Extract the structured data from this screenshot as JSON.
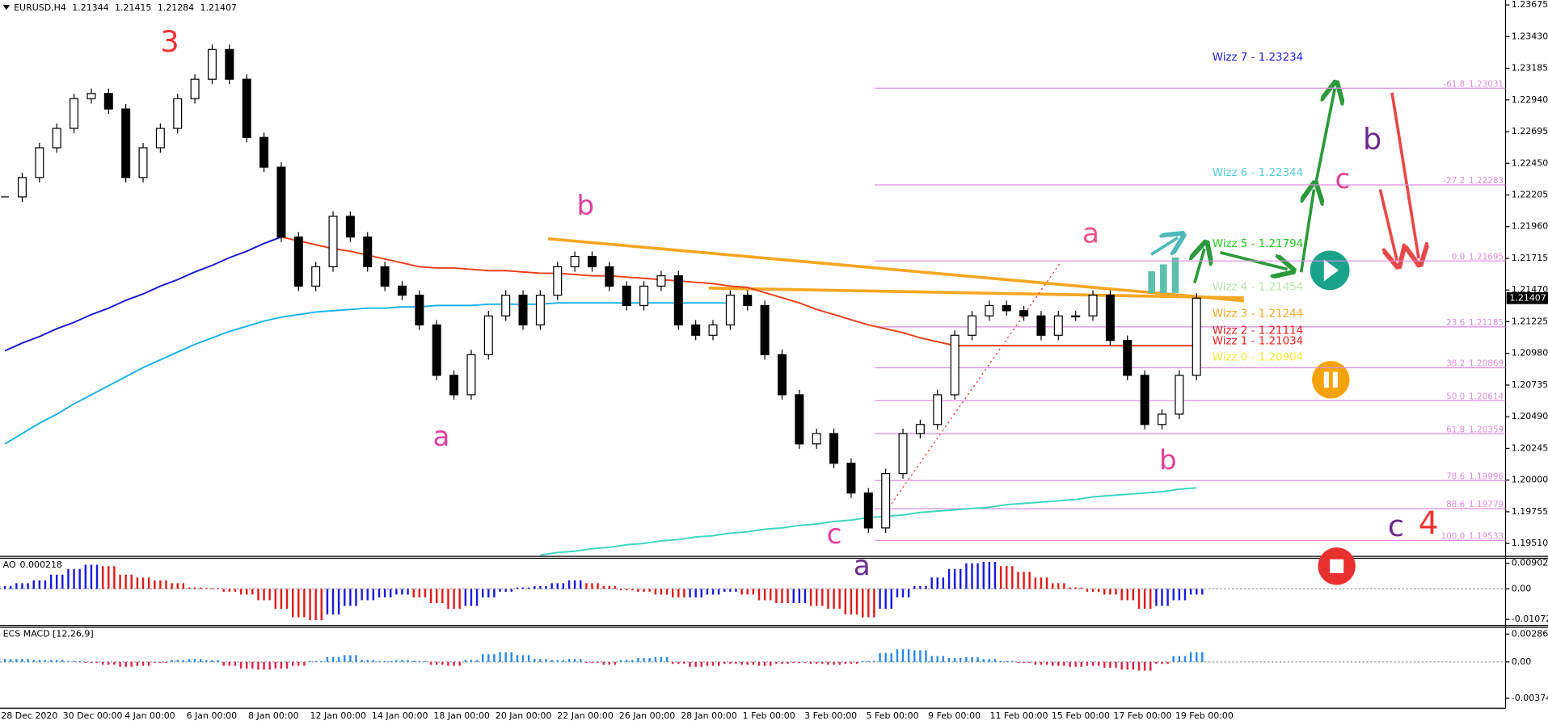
{
  "chart_data": {
    "type": "candlestick",
    "symbol": "EURUSD,H4",
    "ohlc": [
      1.21344,
      1.21415,
      1.21284,
      1.21407
    ],
    "ylim": [
      1.19418,
      1.23713
    ],
    "yticks": [
      1.23675,
      {
        "value": 1.2343,
        "label": "1.23430"
      },
      1.23185,
      {
        "value": 1.2294,
        "label": "1.22940"
      },
      1.22695,
      {
        "value": 1.2245,
        "label": "1.22450"
      },
      1.22205,
      {
        "value": 1.2196,
        "label": "1.21960"
      },
      1.21715,
      {
        "value": 1.2147,
        "label": "1.21470"
      },
      1.21225,
      {
        "value": 1.2098,
        "label": "1.20980"
      },
      1.20735,
      {
        "value": 1.2049,
        "label": "1.20490"
      },
      1.20245,
      {
        "value": 1.2,
        "label": "1.20000"
      },
      1.19755,
      {
        "value": 1.1951,
        "label": "1.19510"
      }
    ],
    "date_labels": [
      "28 Dec 2020",
      "30 Dec 00:00",
      "4 Jan 00:00",
      "6 Jan 00:00",
      "8 Jan 00:00",
      "12 Jan 00:00",
      "14 Jan 00:00",
      "18 Jan 00:00",
      "20 Jan 00:00",
      "22 Jan 00:00",
      "26 Jan 00:00",
      "28 Jan 00:00",
      "1 Feb 00:00",
      "3 Feb 00:00",
      "5 Feb 00:00",
      "9 Feb 00:00",
      "11 Feb 00:00",
      "15 Feb 00:00",
      "17 Feb 00:00",
      "19 Feb 00:00"
    ],
    "closes": [
      1.2219,
      1.2234,
      1.2257,
      1.2272,
      1.2295,
      1.2299,
      1.2287,
      1.2234,
      1.2257,
      1.2272,
      1.2295,
      1.231,
      1.2333,
      1.231,
      1.2265,
      1.2242,
      1.2188,
      1.215,
      1.2165,
      1.2204,
      1.2188,
      1.2165,
      1.215,
      1.2143,
      1.212,
      1.2081,
      1.2066,
      1.2097,
      1.2127,
      1.2143,
      1.212,
      1.2143,
      1.2165,
      1.2173,
      1.2165,
      1.215,
      1.2135,
      1.215,
      1.2158,
      1.212,
      1.2112,
      1.212,
      1.2143,
      1.2135,
      1.2097,
      1.2066,
      1.2028,
      1.2036,
      1.2013,
      1.199,
      1.1963,
      1.2005,
      1.2036,
      1.2043,
      1.2066,
      1.2112,
      1.2127,
      1.2135,
      1.2131,
      1.2127,
      1.2112,
      1.2127,
      1.2127,
      1.2143,
      1.2108,
      1.2081,
      1.2043,
      1.2051,
      1.2081,
      1.21407
    ],
    "moving_averages": [
      {
        "color": "#1a1acc",
        "values": [
          1.21,
          1.2106,
          1.2111,
          1.2117,
          1.2122,
          1.2128,
          1.2133,
          1.2139,
          1.2144,
          1.215,
          1.2155,
          1.2161,
          1.2166,
          1.2172,
          1.2177,
          1.2183,
          1.2188,
          null,
          null,
          null,
          null,
          null,
          null,
          null,
          null,
          null,
          null,
          null,
          null,
          null,
          null,
          null,
          null,
          null,
          null,
          null,
          null,
          null,
          null,
          null,
          null,
          null,
          null,
          null,
          null,
          null,
          null,
          null,
          null,
          null,
          null,
          null,
          null,
          null,
          null,
          null,
          null,
          null,
          null,
          null,
          null,
          null,
          null,
          null,
          null,
          null,
          null,
          null,
          null,
          null
        ]
      },
      {
        "color": "#e8401c",
        "values": [
          null,
          null,
          null,
          null,
          null,
          null,
          null,
          null,
          null,
          null,
          null,
          null,
          null,
          null,
          null,
          null,
          1.2188,
          1.2185,
          1.2182,
          1.2179,
          1.2177,
          1.2174,
          1.2171,
          1.2168,
          1.2165,
          1.2164,
          1.2164,
          1.2163,
          1.2162,
          1.2162,
          1.2161,
          1.216,
          1.216,
          1.2159,
          1.2158,
          1.2158,
          1.2157,
          1.2156,
          1.2155,
          1.2154,
          1.2153,
          1.2152,
          1.215,
          1.2149,
          1.2145,
          1.2141,
          1.2137,
          1.2132,
          1.2128,
          1.2124,
          1.212,
          1.2117,
          1.2114,
          1.211,
          1.2107,
          1.2104,
          1.2104,
          1.2104,
          1.2104,
          1.2104,
          1.2104,
          1.2104,
          1.2104,
          1.2104,
          1.2104,
          1.2104,
          1.2104,
          1.2104,
          1.2104,
          1.2104
        ]
      },
      {
        "color": "#1ab2e8",
        "values": [
          1.2028,
          1.2036,
          1.2044,
          1.2051,
          1.2059,
          1.2066,
          1.2073,
          1.208,
          1.2087,
          1.2093,
          1.2099,
          1.2105,
          1.211,
          1.2115,
          1.2119,
          1.2123,
          1.2126,
          1.2128,
          1.213,
          1.2131,
          1.2132,
          1.2133,
          1.2133,
          1.2134,
          1.2134,
          1.2135,
          1.2135,
          1.2135,
          1.2136,
          1.2136,
          1.2136,
          1.2136,
          1.2137,
          1.2137,
          1.2137,
          1.2137,
          1.2137,
          1.2137,
          1.2137,
          1.2137,
          1.2137,
          1.2137,
          1.2137,
          null,
          null,
          null,
          null,
          null,
          null,
          null,
          null,
          null,
          null,
          null,
          null,
          null,
          null,
          null,
          null,
          null,
          null,
          null,
          null,
          null,
          null,
          null,
          null,
          null,
          null,
          null
        ]
      },
      {
        "color": "#3dd6c0",
        "values": [
          null,
          null,
          null,
          null,
          null,
          null,
          null,
          null,
          null,
          null,
          null,
          null,
          null,
          null,
          null,
          null,
          null,
          null,
          null,
          null,
          null,
          null,
          null,
          null,
          null,
          null,
          null,
          null,
          null,
          null,
          null,
          1.1942,
          1.1944,
          1.1945,
          1.1947,
          1.1948,
          1.195,
          1.1951,
          1.1953,
          1.1954,
          1.1956,
          1.1957,
          1.1959,
          1.196,
          1.1962,
          1.1963,
          1.1965,
          1.1966,
          1.1968,
          1.1969,
          1.1971,
          1.1972,
          1.1973,
          1.1975,
          1.1976,
          1.1977,
          1.1978,
          1.1979,
          1.1981,
          1.1982,
          1.1983,
          1.1984,
          1.1985,
          1.1987,
          1.1988,
          1.1989,
          1.199,
          1.1991,
          1.1993,
          1.1994
        ]
      }
    ],
    "fib_color": "#dc8edc",
    "fib_levels": [
      {
        "label": "-61.8",
        "price": 1.23031
      },
      {
        "label": "-27.2",
        "price": 1.22283
      },
      {
        "label": "0.0",
        "price": 1.21695
      },
      {
        "label": "23.6",
        "price": 1.21185
      },
      {
        "label": "38.2",
        "price": 1.20869
      },
      {
        "label": "50.0",
        "price": 1.20614
      },
      {
        "label": "61.8",
        "price": 1.20359
      },
      {
        "label": "78.6",
        "price": 1.19996
      },
      {
        "label": "88.6",
        "price": 1.19779
      },
      {
        "label": "100.0",
        "price": 1.19533
      }
    ],
    "wizz_labels": [
      {
        "text": "Wizz 7 - 1.23234",
        "color": "#2222dd"
      },
      {
        "text": "Wizz 6 - 1.22344",
        "color": "#55cce0"
      },
      {
        "text": "Wizz 5 - 1.21794",
        "color": "#22cc22"
      },
      {
        "text": "Wizz 4 - 1.21454",
        "color": "#b9e4b0"
      },
      {
        "text": "Wizz 3 - 1.21244",
        "color": "#f5a623"
      },
      {
        "text": "Wizz 2 - 1.21114",
        "color": "#ee2222"
      },
      {
        "text": "Wizz 1 - 1.21034",
        "color": "#ee2222"
      },
      {
        "text": "Wizz 0 - 1.20904",
        "color": "#f2e63c"
      }
    ],
    "wave_labels": [
      {
        "text": "3",
        "color": "#ee3333"
      },
      {
        "text": "b",
        "color": "#e0409c"
      },
      {
        "text": "a",
        "color": "#e0409c"
      },
      {
        "text": "a",
        "color": "#f0508a"
      },
      {
        "text": "c",
        "color": "#e0409c"
      },
      {
        "text": "a",
        "color": "#6a2a8a"
      },
      {
        "text": "b",
        "color": "#e0409c"
      },
      {
        "text": "c",
        "color": "#e0409c"
      },
      {
        "text": "b",
        "color": "#6a2a8a"
      },
      {
        "text": "c",
        "color": "#6a2a8a"
      },
      {
        "text": "4",
        "color": "#ee3333"
      }
    ],
    "ao": {
      "label": "AO",
      "value": 0.000218,
      "ylim": [
        -0.01249,
        0.01041
      ],
      "yticks": [
        0.00902,
        {
          "value": 0,
          "label": "0.00"
        },
        -0.010721
      ],
      "up_color": "#1a1ae0",
      "down_color": "#e01a1a",
      "values": [
        0.001,
        0.002,
        0.003,
        0.005,
        0.007,
        0.0085,
        0.008,
        0.005,
        0.004,
        0.003,
        0.002,
        0.0005,
        0.0003,
        -0.001,
        -0.002,
        -0.004,
        -0.007,
        -0.01,
        -0.011,
        -0.009,
        -0.006,
        -0.004,
        -0.003,
        -0.002,
        -0.003,
        -0.005,
        -0.007,
        -0.006,
        -0.003,
        -0.001,
        0.0005,
        0.001,
        0.002,
        0.003,
        0.002,
        0.001,
        -0.0005,
        -0.001,
        -0.002,
        -0.003,
        -0.003,
        -0.002,
        -0.001,
        -0.002,
        -0.004,
        -0.005,
        -0.005,
        -0.006,
        -0.007,
        -0.009,
        -0.01,
        -0.007,
        -0.003,
        0.001,
        0.004,
        0.007,
        0.009,
        0.0095,
        0.008,
        0.006,
        0.004,
        0.002,
        0.0005,
        -0.001,
        -0.002,
        -0.004,
        -0.007,
        -0.006,
        -0.004,
        -0.002
      ]
    },
    "macd": {
      "label": "ECS MACD [12,26,9]",
      "ylim": [
        -0.00467,
        0.00346
      ],
      "yticks": [
        0.0028658,
        {
          "value": 0,
          "label": "0.00"
        },
        -0.0037482
      ],
      "up_color": "#2a8ae8",
      "down_color": "#e0264a",
      "values": [
        0.0003,
        0.0003,
        0.0002,
        0.0002,
        0.0001,
        -0.0001,
        -0.0003,
        -0.0005,
        -0.0004,
        -0.0001,
        0.0002,
        0.0003,
        0.0002,
        -0.0004,
        -0.0007,
        -0.0008,
        -0.0007,
        -0.0004,
        0.0001,
        0.0005,
        0.0007,
        0.0002,
        0.0001,
        0.0002,
        0.0001,
        -0.0003,
        -0.0004,
        0.0002,
        0.0008,
        0.001,
        0.0007,
        0.0003,
        0.0002,
        0.0003,
        -0.0001,
        -0.0003,
        0.0002,
        0.0004,
        0.0005,
        -0.0002,
        -0.0005,
        -0.0004,
        -0.0002,
        -0.0003,
        -0.0004,
        -0.0002,
        -0.0001,
        -0.0002,
        -0.0003,
        -0.0002,
        0.0001,
        0.0009,
        0.0013,
        0.0012,
        0.0006,
        0.0004,
        0.0005,
        0.0003,
        0.0001,
        -0.0001,
        -0.0003,
        -0.0004,
        -0.0005,
        -0.0004,
        -0.0006,
        -0.0008,
        -0.0009,
        -0.0002,
        0.0006,
        0.001
      ]
    }
  }
}
